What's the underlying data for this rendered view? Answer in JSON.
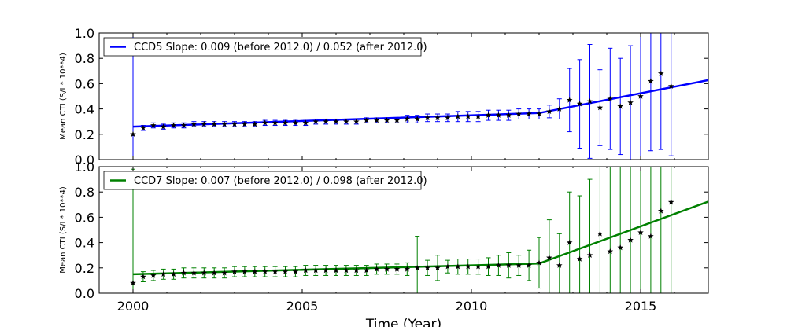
{
  "xlabel": "Time (Year)",
  "chart_data": [
    {
      "type": "scatter",
      "ylabel": "Mean CTI (S/I * 10**4)",
      "xlim": [
        1999,
        2017
      ],
      "ylim": [
        0.0,
        1.0
      ],
      "x_ticks": [
        "2000",
        "2005",
        "2010",
        "2015"
      ],
      "y_ticks": [
        "0.0",
        "0.2",
        "0.4",
        "0.6",
        "0.8",
        "1.0"
      ],
      "legend": "CCD5 Slope: 0.009 (before 2012.0) / 0.052 (after 2012.0)",
      "legend_position": "top-left",
      "color": "#0000ff",
      "fit": {
        "x": [
          2000.0,
          2012.0,
          2017.0
        ],
        "y": [
          0.26,
          0.368,
          0.628
        ]
      },
      "x": [
        2000.0,
        2000.3,
        2000.6,
        2000.9,
        2001.2,
        2001.5,
        2001.8,
        2002.1,
        2002.4,
        2002.7,
        2003.0,
        2003.3,
        2003.6,
        2003.9,
        2004.2,
        2004.5,
        2004.8,
        2005.1,
        2005.4,
        2005.7,
        2006.0,
        2006.3,
        2006.6,
        2006.9,
        2007.2,
        2007.5,
        2007.8,
        2008.1,
        2008.4,
        2008.7,
        2009.0,
        2009.3,
        2009.6,
        2009.9,
        2010.2,
        2010.5,
        2010.8,
        2011.1,
        2011.4,
        2011.7,
        2012.0,
        2012.3,
        2012.6,
        2012.9,
        2013.2,
        2013.5,
        2013.8,
        2014.1,
        2014.4,
        2014.7,
        2015.0,
        2015.3,
        2015.6,
        2015.9
      ],
      "y": [
        0.2,
        0.25,
        0.27,
        0.26,
        0.27,
        0.27,
        0.28,
        0.28,
        0.28,
        0.28,
        0.28,
        0.28,
        0.28,
        0.29,
        0.29,
        0.29,
        0.29,
        0.29,
        0.3,
        0.3,
        0.3,
        0.3,
        0.3,
        0.31,
        0.31,
        0.31,
        0.31,
        0.32,
        0.32,
        0.33,
        0.33,
        0.33,
        0.34,
        0.34,
        0.34,
        0.35,
        0.35,
        0.35,
        0.36,
        0.36,
        0.36,
        0.38,
        0.4,
        0.47,
        0.44,
        0.46,
        0.41,
        0.48,
        0.42,
        0.45,
        0.5,
        0.62,
        0.68,
        0.58
      ],
      "err": [
        0.8,
        0.02,
        0.02,
        0.02,
        0.02,
        0.02,
        0.02,
        0.02,
        0.02,
        0.02,
        0.02,
        0.02,
        0.02,
        0.02,
        0.02,
        0.02,
        0.02,
        0.02,
        0.02,
        0.02,
        0.02,
        0.02,
        0.02,
        0.02,
        0.02,
        0.02,
        0.02,
        0.03,
        0.03,
        0.03,
        0.03,
        0.03,
        0.04,
        0.04,
        0.04,
        0.04,
        0.04,
        0.04,
        0.04,
        0.04,
        0.04,
        0.05,
        0.08,
        0.25,
        0.35,
        0.45,
        0.3,
        0.4,
        0.38,
        0.45,
        0.5,
        0.55,
        0.6,
        0.55
      ]
    },
    {
      "type": "scatter",
      "ylabel": "Mean CTI (S/I * 10**4)",
      "xlim": [
        1999,
        2017
      ],
      "ylim": [
        0.0,
        1.0
      ],
      "x_ticks": [
        "2000",
        "2005",
        "2010",
        "2015"
      ],
      "y_ticks": [
        "0.0",
        "0.2",
        "0.4",
        "0.6",
        "0.8",
        "1.0"
      ],
      "legend": "CCD7 Slope: 0.007 (before 2012.0) / 0.098 (after 2012.0)",
      "legend_position": "top-left",
      "color": "#008000",
      "fit": {
        "x": [
          2000.0,
          2012.0,
          2017.0
        ],
        "y": [
          0.15,
          0.234,
          0.724
        ]
      },
      "x": [
        2000.0,
        2000.3,
        2000.6,
        2000.9,
        2001.2,
        2001.5,
        2001.8,
        2002.1,
        2002.4,
        2002.7,
        2003.0,
        2003.3,
        2003.6,
        2003.9,
        2004.2,
        2004.5,
        2004.8,
        2005.1,
        2005.4,
        2005.7,
        2006.0,
        2006.3,
        2006.6,
        2006.9,
        2007.2,
        2007.5,
        2007.8,
        2008.1,
        2008.4,
        2008.7,
        2009.0,
        2009.3,
        2009.6,
        2009.9,
        2010.2,
        2010.5,
        2010.8,
        2011.1,
        2011.4,
        2011.7,
        2012.0,
        2012.3,
        2012.6,
        2012.9,
        2013.2,
        2013.5,
        2013.8,
        2014.1,
        2014.4,
        2014.7,
        2015.0,
        2015.3,
        2015.6,
        2015.9
      ],
      "y": [
        0.08,
        0.13,
        0.14,
        0.15,
        0.15,
        0.16,
        0.16,
        0.16,
        0.16,
        0.16,
        0.17,
        0.17,
        0.17,
        0.17,
        0.17,
        0.17,
        0.17,
        0.18,
        0.18,
        0.18,
        0.18,
        0.18,
        0.18,
        0.18,
        0.19,
        0.19,
        0.19,
        0.19,
        0.2,
        0.2,
        0.2,
        0.21,
        0.21,
        0.21,
        0.21,
        0.21,
        0.22,
        0.22,
        0.22,
        0.22,
        0.24,
        0.28,
        0.22,
        0.4,
        0.27,
        0.3,
        0.47,
        0.33,
        0.36,
        0.42,
        0.48,
        0.45,
        0.65,
        0.72
      ],
      "err": [
        0.9,
        0.04,
        0.04,
        0.04,
        0.04,
        0.04,
        0.04,
        0.04,
        0.04,
        0.04,
        0.04,
        0.04,
        0.04,
        0.04,
        0.04,
        0.04,
        0.04,
        0.04,
        0.04,
        0.04,
        0.04,
        0.04,
        0.04,
        0.04,
        0.04,
        0.04,
        0.04,
        0.05,
        0.25,
        0.06,
        0.1,
        0.05,
        0.06,
        0.06,
        0.06,
        0.07,
        0.08,
        0.1,
        0.08,
        0.12,
        0.2,
        0.3,
        0.25,
        0.4,
        0.5,
        0.6,
        0.65,
        0.7,
        0.65,
        0.7,
        0.75,
        0.8,
        0.85,
        0.85
      ]
    }
  ]
}
